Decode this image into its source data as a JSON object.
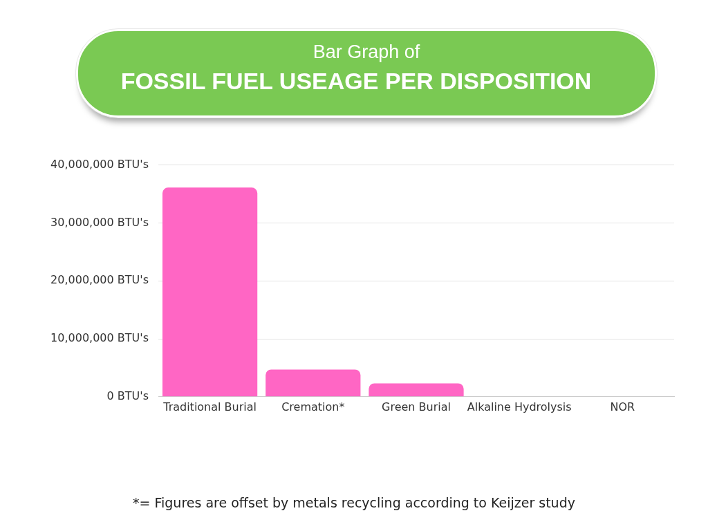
{
  "chart_data": {
    "type": "bar",
    "title": "FOSSIL FUEL USEAGE PER DISPOSITION",
    "subtitle": "Bar Graph of",
    "categories": [
      "Traditional Burial",
      "Cremation*",
      "Green Burial",
      "Alkaline Hydrolysis",
      "NOR"
    ],
    "values": [
      36100000,
      4700000,
      2300000,
      0,
      0
    ],
    "color": "#ff66c4",
    "ylim": [
      0,
      40000000
    ],
    "yticks": [
      {
        "value": 0,
        "label": "0 BTU's"
      },
      {
        "value": 10000000,
        "label": "10,000,000 BTU's"
      },
      {
        "value": 20000000,
        "label": "20,000,000 BTU's"
      },
      {
        "value": 30000000,
        "label": "30,000,000 BTU's"
      },
      {
        "value": 40000000,
        "label": "40,000,000 BTU's"
      }
    ],
    "grid": "y",
    "legend": false,
    "annotations": [
      "*= Figures are offset by metals recycling according to Keijzer study"
    ]
  }
}
